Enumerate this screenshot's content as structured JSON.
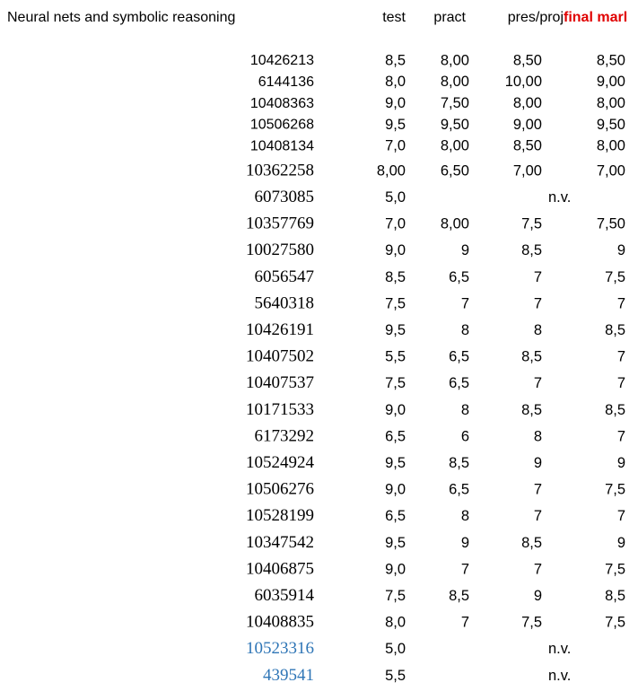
{
  "header": {
    "title": "Neural nets and symbolic reasoning",
    "columns": [
      "test",
      "pract",
      "pres/proj",
      "final marl"
    ]
  },
  "table": {
    "rows": [
      {
        "id": "10426213",
        "test": "8,5",
        "pract": "8,00",
        "pres": "8,50",
        "final": "8,50"
      },
      {
        "id": "6144136",
        "test": "8,0",
        "pract": "8,00",
        "pres": "10,00",
        "final": "9,00"
      },
      {
        "id": "10408363",
        "test": "9,0",
        "pract": "7,50",
        "pres": "8,00",
        "final": "8,00"
      },
      {
        "id": "10506268",
        "test": "9,5",
        "pract": "9,50",
        "pres": "9,00",
        "final": "9,50"
      },
      {
        "id": "10408134",
        "test": "7,0",
        "pract": "8,00",
        "pres": "8,50",
        "final": "8,00"
      },
      {
        "id": "10362258",
        "test": "8,00",
        "pract": "6,50",
        "pres": "7,00",
        "final": "7,00"
      },
      {
        "id": "6073085",
        "test": "5,0",
        "note": "n.v."
      },
      {
        "id": "10357769",
        "test": "7,0",
        "pract": "8,00",
        "pres": "7,5",
        "final": "7,50"
      },
      {
        "id": "10027580",
        "test": "9,0",
        "pract": "9",
        "pres": "8,5",
        "final": "9"
      },
      {
        "id": "6056547",
        "test": "8,5",
        "pract": "6,5",
        "pres": "7",
        "final": "7,5"
      },
      {
        "id": "5640318",
        "test": "7,5",
        "pract": "7",
        "pres": "7",
        "final": "7"
      },
      {
        "id": "10426191",
        "test": "9,5",
        "pract": "8",
        "pres": "8",
        "final": "8,5"
      },
      {
        "id": "10407502",
        "test": "5,5",
        "pract": "6,5",
        "pres": "8,5",
        "final": "7"
      },
      {
        "id": "10407537",
        "test": "7,5",
        "pract": "6,5",
        "pres": "7",
        "final": "7"
      },
      {
        "id": "10171533",
        "test": "9,0",
        "pract": "8",
        "pres": "8,5",
        "final": "8,5"
      },
      {
        "id": "6173292",
        "test": "6,5",
        "pract": "6",
        "pres": "8",
        "final": "7"
      },
      {
        "id": "10524924",
        "test": "9,5",
        "pract": "8,5",
        "pres": "9",
        "final": "9"
      },
      {
        "id": "10506276",
        "test": "9,0",
        "pract": "6,5",
        "pres": "7",
        "final": "7,5"
      },
      {
        "id": "10528199",
        "test": "6,5",
        "pract": "8",
        "pres": "7",
        "final": "7"
      },
      {
        "id": "10347542",
        "test": "9,5",
        "pract": "9",
        "pres": "8,5",
        "final": "9"
      },
      {
        "id": "10406875",
        "test": "9,0",
        "pract": "7",
        "pres": "7",
        "final": "7,5"
      },
      {
        "id": "6035914",
        "test": "7,5",
        "pract": "8,5",
        "pres": "9",
        "final": "8,5"
      },
      {
        "id": "10408835",
        "test": "8,0",
        "pract": "7",
        "pres": "7,5",
        "final": "7,5"
      },
      {
        "id": "10523316",
        "test": "5,0",
        "note": "n.v.",
        "color": "#2e75b6"
      },
      {
        "id": "439541",
        "test": "5,5",
        "note": "n.v.",
        "color": "#2e75b6"
      }
    ]
  }
}
